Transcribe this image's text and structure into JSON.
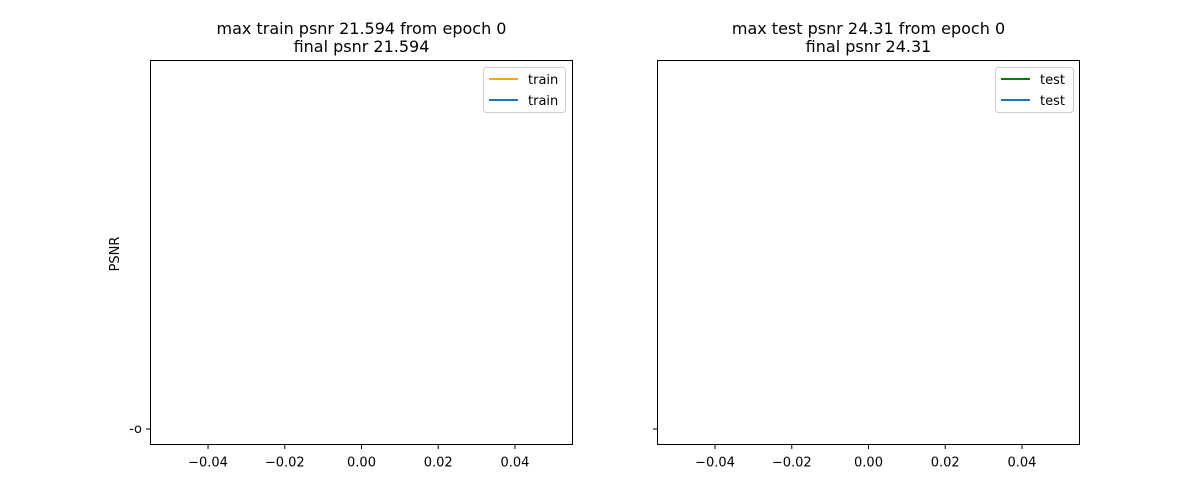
{
  "chart_data": [
    {
      "type": "line",
      "title": [
        "max train psnr 21.594 from epoch 0",
        "final psnr 21.594"
      ],
      "xlabel": "",
      "ylabel": "PSNR",
      "xlim": [
        -0.055,
        0.055
      ],
      "xticks": [
        "−0.04",
        "−0.02",
        "0.00",
        "0.02",
        "0.04"
      ],
      "xtick_values": [
        -0.04,
        -0.02,
        0.0,
        0.02,
        0.04
      ],
      "yticks": [
        "-o"
      ],
      "grid": false,
      "legend_position": "top-right",
      "series": [
        {
          "name": "train",
          "color": "#ffa500",
          "x": [],
          "y": []
        },
        {
          "name": "train",
          "color": "#1f77b4",
          "x": [],
          "y": []
        }
      ]
    },
    {
      "type": "line",
      "title": [
        "max test psnr 24.31 from epoch 0",
        "final psnr 24.31"
      ],
      "xlabel": "",
      "ylabel": "",
      "xlim": [
        -0.055,
        0.055
      ],
      "xticks": [
        "−0.04",
        "−0.02",
        "0.00",
        "0.02",
        "0.04"
      ],
      "xtick_values": [
        -0.04,
        -0.02,
        0.0,
        0.02,
        0.04
      ],
      "yticks": [],
      "grid": false,
      "legend_position": "top-right",
      "series": [
        {
          "name": "test",
          "color": "#008000",
          "x": [],
          "y": []
        },
        {
          "name": "test",
          "color": "#1f77b4",
          "x": [],
          "y": []
        }
      ]
    }
  ]
}
